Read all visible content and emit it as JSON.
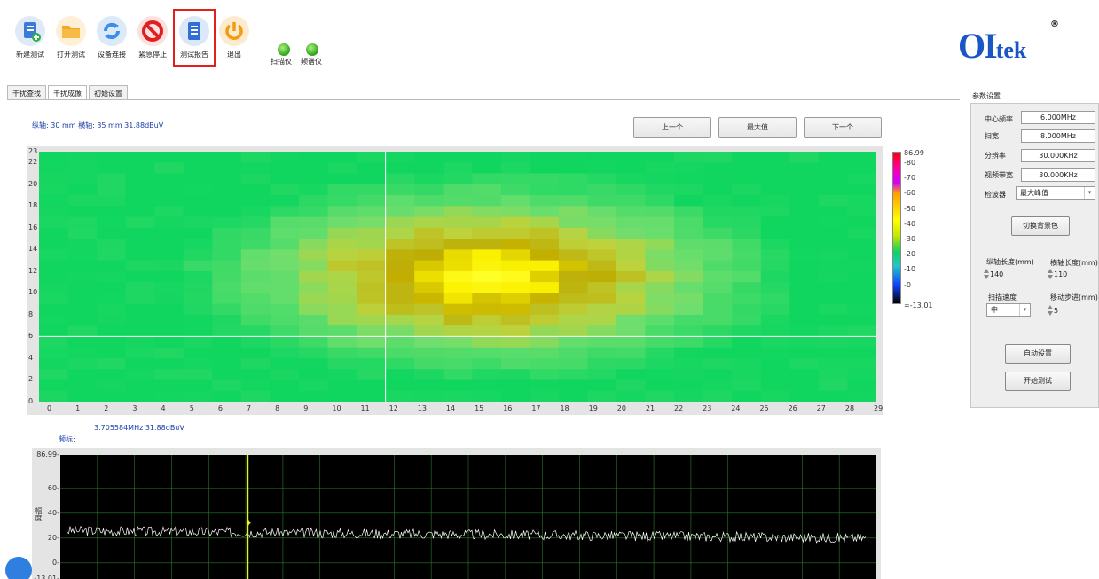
{
  "toolbar": {
    "buttons": [
      {
        "label": "新建测试",
        "icon": "new-test-icon",
        "color": "#3a7bd5"
      },
      {
        "label": "打开测试",
        "icon": "folder-icon",
        "color": "#f5a623"
      },
      {
        "label": "设备连接",
        "icon": "refresh-icon",
        "color": "#3a8ee6"
      },
      {
        "label": "紧急停止",
        "icon": "stop-icon",
        "color": "#e02020"
      },
      {
        "label": "测试报告",
        "icon": "report-icon",
        "color": "#2f6fd6"
      },
      {
        "label": "退出",
        "icon": "power-icon",
        "color": "#f39c12"
      }
    ],
    "leds": [
      {
        "label": "扫描仪",
        "status_color": "#3cb624"
      },
      {
        "label": "频谱仪",
        "status_color": "#3cb624"
      }
    ]
  },
  "logo": {
    "big": "OI",
    "small": "tek",
    "mark": "®"
  },
  "tabs": [
    "干扰查找",
    "干扰成像",
    "初始设置"
  ],
  "active_tab": "干扰成像",
  "heatmap": {
    "readout": "纵轴: 30 mm  横轴: 35 mm  31.88dBuV",
    "nav": {
      "prev": "上一个",
      "max": "最大值",
      "next": "下一个"
    },
    "x_ticks": [
      "0",
      "1",
      "2",
      "3",
      "4",
      "5",
      "6",
      "7",
      "8",
      "9",
      "10",
      "11",
      "12",
      "13",
      "14",
      "15",
      "16",
      "17",
      "18",
      "19",
      "20",
      "21",
      "22",
      "23",
      "24",
      "25",
      "26",
      "27",
      "28",
      "29"
    ],
    "y_ticks": [
      "0",
      "2",
      "4",
      "6",
      "8",
      "10",
      "12",
      "14",
      "16",
      "18",
      "20",
      "22",
      "23"
    ],
    "colorbar": {
      "max": "86.99",
      "ticks": [
        "80",
        "70",
        "60",
        "50",
        "40",
        "30",
        "20",
        "10",
        "0"
      ],
      "min": "-13.01"
    },
    "cursor": {
      "x": 12,
      "y": 6
    }
  },
  "spectrum": {
    "readout": "3.705584MHz   31.88dBuV",
    "axis_title": "频标:",
    "y_label": "幅度",
    "y_ticks": [
      "86.99",
      "60",
      "40",
      "20",
      "0",
      "-13.01"
    ],
    "marker_position": 0.23,
    "colors": {
      "background": "#000000",
      "grid": "#2a7a2a",
      "trace": "#ffffff",
      "marker": "#f0f020"
    }
  },
  "panel": {
    "title": "参数设置",
    "center_freq": {
      "label": "中心频率",
      "value": "6.000MHz"
    },
    "span": {
      "label": "扫宽",
      "value": "8.000MHz"
    },
    "rbw": {
      "label": "分辨率",
      "value": "30.000KHz"
    },
    "vbw": {
      "label": "视频带宽",
      "value": "30.000KHz"
    },
    "detector": {
      "label": "检波器",
      "value": "最大峰值"
    },
    "bg_button": "切换背景色",
    "y_len": {
      "label": "纵轴长度(mm)",
      "value": "140"
    },
    "x_len": {
      "label": "横轴长度(mm)",
      "value": "110"
    },
    "scan_speed": {
      "label": "扫描速度",
      "value": "中"
    },
    "step": {
      "label": "移动步进(mm)",
      "value": "5"
    },
    "auto_button": "自动设置",
    "start_button": "开始测试"
  }
}
